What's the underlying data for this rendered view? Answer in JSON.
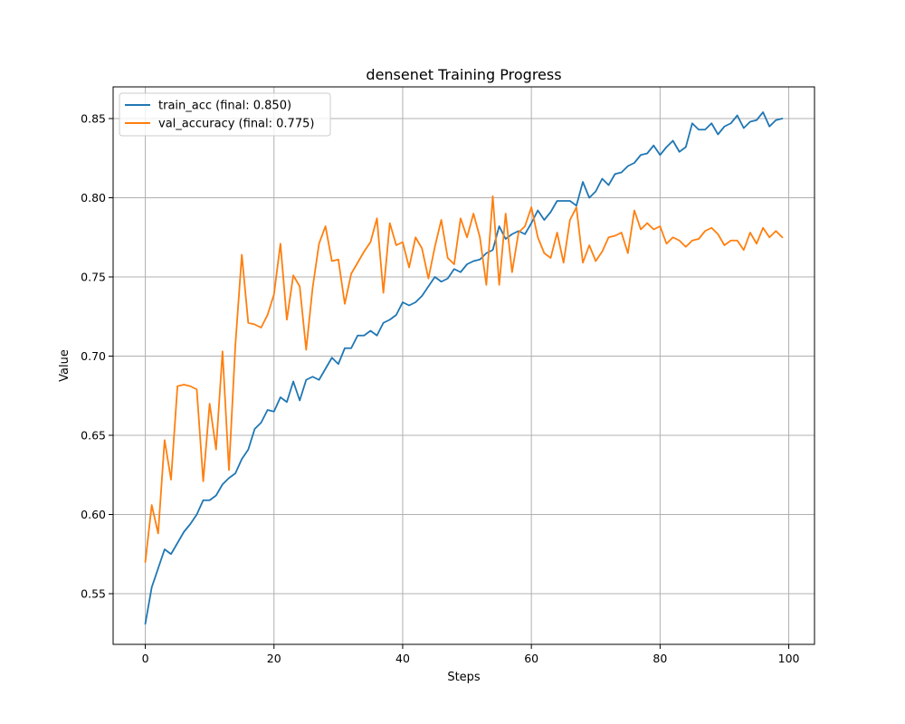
{
  "chart_data": {
    "type": "line",
    "title": "densenet Training Progress",
    "xlabel": "Steps",
    "ylabel": "Value",
    "xlim": [
      -5,
      104
    ],
    "ylim": [
      0.518,
      0.87
    ],
    "xticks": [
      0,
      20,
      40,
      60,
      80,
      100
    ],
    "yticks": [
      0.55,
      0.6,
      0.65,
      0.7,
      0.75,
      0.8,
      0.85
    ],
    "grid": true,
    "legend": "upper-left",
    "series": [
      {
        "name": "train_acc (final: 0.850)",
        "color": "#1f77b4",
        "values": [
          0.531,
          0.554,
          0.566,
          0.578,
          0.575,
          0.582,
          0.589,
          0.594,
          0.6,
          0.609,
          0.609,
          0.612,
          0.619,
          0.623,
          0.626,
          0.635,
          0.641,
          0.654,
          0.658,
          0.666,
          0.665,
          0.674,
          0.671,
          0.684,
          0.672,
          0.685,
          0.687,
          0.685,
          0.692,
          0.699,
          0.695,
          0.705,
          0.705,
          0.713,
          0.713,
          0.716,
          0.713,
          0.721,
          0.723,
          0.726,
          0.734,
          0.732,
          0.734,
          0.738,
          0.744,
          0.75,
          0.747,
          0.749,
          0.755,
          0.753,
          0.758,
          0.76,
          0.761,
          0.765,
          0.767,
          0.782,
          0.774,
          0.777,
          0.779,
          0.777,
          0.784,
          0.792,
          0.786,
          0.791,
          0.798,
          0.798,
          0.798,
          0.795,
          0.81,
          0.8,
          0.804,
          0.812,
          0.808,
          0.815,
          0.816,
          0.82,
          0.822,
          0.827,
          0.828,
          0.833,
          0.827,
          0.832,
          0.836,
          0.829,
          0.832,
          0.847,
          0.843,
          0.843,
          0.847,
          0.84,
          0.845,
          0.847,
          0.852,
          0.844,
          0.848,
          0.849,
          0.854,
          0.845,
          0.849,
          0.85
        ]
      },
      {
        "name": "val_accuracy (final: 0.775)",
        "color": "#ff7f0e",
        "values": [
          0.57,
          0.606,
          0.588,
          0.647,
          0.622,
          0.681,
          0.682,
          0.681,
          0.679,
          0.621,
          0.67,
          0.641,
          0.703,
          0.628,
          0.707,
          0.764,
          0.721,
          0.72,
          0.718,
          0.726,
          0.739,
          0.771,
          0.723,
          0.751,
          0.744,
          0.704,
          0.743,
          0.771,
          0.782,
          0.76,
          0.761,
          0.733,
          0.752,
          0.759,
          0.766,
          0.772,
          0.787,
          0.74,
          0.784,
          0.77,
          0.772,
          0.756,
          0.775,
          0.768,
          0.749,
          0.769,
          0.786,
          0.762,
          0.758,
          0.787,
          0.775,
          0.79,
          0.775,
          0.745,
          0.801,
          0.745,
          0.79,
          0.753,
          0.778,
          0.782,
          0.794,
          0.775,
          0.765,
          0.762,
          0.778,
          0.759,
          0.786,
          0.794,
          0.759,
          0.77,
          0.76,
          0.766,
          0.775,
          0.776,
          0.778,
          0.765,
          0.792,
          0.78,
          0.784,
          0.78,
          0.782,
          0.771,
          0.775,
          0.773,
          0.769,
          0.773,
          0.774,
          0.779,
          0.781,
          0.777,
          0.77,
          0.773,
          0.773,
          0.767,
          0.778,
          0.771,
          0.781,
          0.775,
          0.779,
          0.775
        ]
      }
    ]
  }
}
